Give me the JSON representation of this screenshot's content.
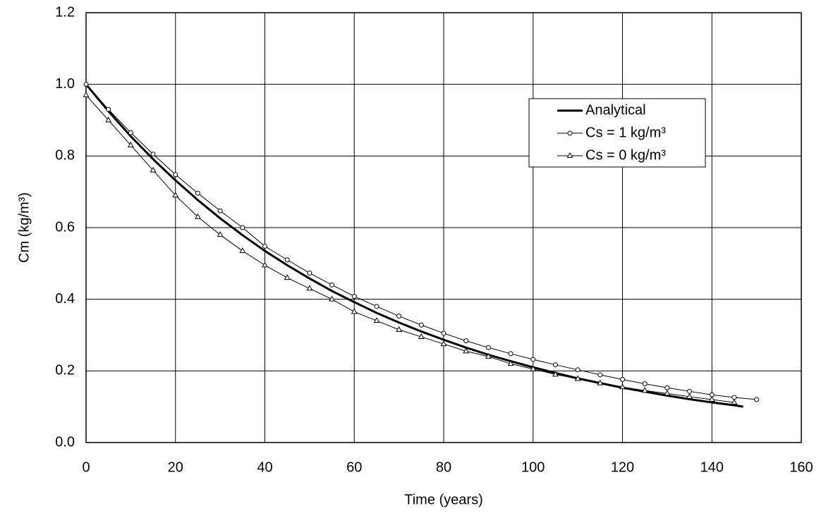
{
  "chart_data": {
    "type": "line",
    "x_label": "Time (years)",
    "y_label": "Cm (kg/m³)",
    "xlim": [
      0,
      160
    ],
    "xticks": [
      0,
      20,
      40,
      60,
      80,
      100,
      120,
      140,
      160
    ],
    "ylim": [
      0,
      1.2
    ],
    "yticks": [
      {
        "value": 0,
        "label": "0.0"
      },
      {
        "value": 0.2,
        "label": "0.2"
      },
      {
        "value": 0.4,
        "label": "0.4"
      },
      {
        "value": 0.6,
        "label": "0.6"
      },
      {
        "value": 0.8,
        "label": "0.8"
      },
      {
        "value": 1,
        "label": "1.0"
      },
      {
        "value": 1.2,
        "label": "1.2"
      }
    ],
    "grid": true,
    "legend": "upper right",
    "series": [
      {
        "name": "Analytical",
        "color": "#000000",
        "marker": "none",
        "x": [
          0,
          5,
          10,
          15,
          20,
          25,
          30,
          35,
          40,
          45,
          50,
          55,
          60,
          65,
          70,
          75,
          80,
          85,
          90,
          95,
          100,
          105,
          110,
          115,
          120,
          125,
          130,
          135,
          140,
          145,
          147
        ],
        "values": [
          1.0,
          0.925,
          0.855,
          0.791,
          0.732,
          0.677,
          0.626,
          0.579,
          0.535,
          0.495,
          0.458,
          0.423,
          0.392,
          0.362,
          0.335,
          0.31,
          0.287,
          0.265,
          0.245,
          0.227,
          0.21,
          0.194,
          0.179,
          0.166,
          0.153,
          0.142,
          0.131,
          0.121,
          0.112,
          0.104,
          0.1
        ]
      },
      {
        "name": "Cs = 1  kg/m³",
        "color": "#000000",
        "marker": "circle",
        "x": [
          0,
          5,
          10,
          15,
          20,
          25,
          30,
          35,
          40,
          45,
          50,
          55,
          60,
          65,
          70,
          75,
          80,
          85,
          90,
          95,
          100,
          105,
          110,
          115,
          120,
          125,
          130,
          135,
          140,
          145,
          150
        ],
        "values": [
          1.0,
          0.93,
          0.865,
          0.805,
          0.748,
          0.696,
          0.647,
          0.6,
          0.548,
          0.51,
          0.473,
          0.44,
          0.408,
          0.38,
          0.353,
          0.328,
          0.305,
          0.284,
          0.265,
          0.248,
          0.232,
          0.217,
          0.203,
          0.189,
          0.176,
          0.164,
          0.153,
          0.143,
          0.133,
          0.126,
          0.12
        ]
      },
      {
        "name": "Cs = 0  kg/m³",
        "color": "#000000",
        "marker": "triangle",
        "x": [
          0,
          5,
          10,
          15,
          20,
          25,
          30,
          35,
          40,
          45,
          50,
          55,
          60,
          65,
          70,
          75,
          80,
          85,
          90,
          95,
          100,
          105,
          110,
          115,
          120,
          125,
          130,
          135,
          140,
          145
        ],
        "values": [
          0.97,
          0.9,
          0.83,
          0.76,
          0.69,
          0.63,
          0.58,
          0.535,
          0.495,
          0.46,
          0.43,
          0.4,
          0.365,
          0.34,
          0.315,
          0.295,
          0.275,
          0.255,
          0.24,
          0.22,
          0.205,
          0.19,
          0.178,
          0.166,
          0.155,
          0.145,
          0.137,
          0.128,
          0.12,
          0.112
        ]
      }
    ]
  }
}
